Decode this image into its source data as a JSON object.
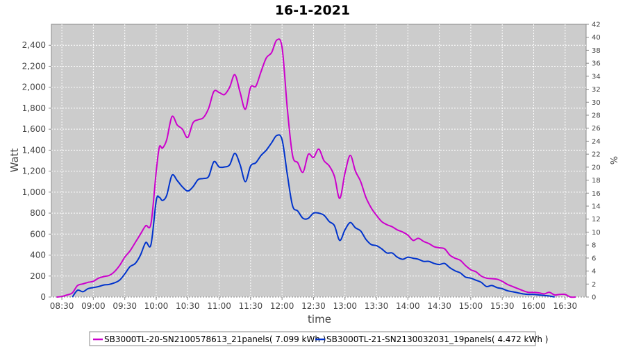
{
  "chart_data": {
    "type": "line",
    "title": "16-1-2021",
    "xlabel": "time",
    "ylabel": "Watt",
    "y2label": "%",
    "xlim": [
      "08:20",
      "16:50"
    ],
    "ylim": [
      0,
      2600
    ],
    "y2lim": [
      0,
      42
    ],
    "grid": true,
    "legend_position": "bottom",
    "x_ticks": [
      "08:30",
      "09:00",
      "09:30",
      "10:00",
      "10:30",
      "11:00",
      "11:30",
      "12:00",
      "12:30",
      "13:00",
      "13:30",
      "14:00",
      "14:30",
      "15:00",
      "15:30",
      "16:00",
      "16:30"
    ],
    "y_ticks": [
      "0",
      "200",
      "400",
      "600",
      "800",
      "1,000",
      "1,200",
      "1,400",
      "1,600",
      "1,800",
      "2,000",
      "2,200",
      "2,400"
    ],
    "y2_ticks": [
      "0",
      "2",
      "4",
      "6",
      "8",
      "10",
      "12",
      "14",
      "16",
      "18",
      "20",
      "22",
      "24",
      "26",
      "28",
      "30",
      "32",
      "34",
      "36",
      "38",
      "40",
      "42"
    ],
    "colors": {
      "plot_bg": "#cccccc",
      "grid": "#ffffff"
    },
    "series": [
      {
        "name": "SB3000TL-20-SN2100578613_21panels( 7.099 kWh )",
        "color": "#cc00cc",
        "points": [
          [
            "08:25",
            0
          ],
          [
            "08:30",
            5
          ],
          [
            "08:35",
            20
          ],
          [
            "08:40",
            40
          ],
          [
            "08:45",
            110
          ],
          [
            "08:50",
            125
          ],
          [
            "08:55",
            140
          ],
          [
            "09:00",
            150
          ],
          [
            "09:05",
            180
          ],
          [
            "09:10",
            195
          ],
          [
            "09:15",
            205
          ],
          [
            "09:20",
            240
          ],
          [
            "09:25",
            300
          ],
          [
            "09:30",
            380
          ],
          [
            "09:35",
            440
          ],
          [
            "09:40",
            520
          ],
          [
            "09:45",
            600
          ],
          [
            "09:50",
            680
          ],
          [
            "09:55",
            700
          ],
          [
            "10:00",
            1200
          ],
          [
            "10:03",
            1430
          ],
          [
            "10:06",
            1420
          ],
          [
            "10:10",
            1500
          ],
          [
            "10:15",
            1720
          ],
          [
            "10:20",
            1640
          ],
          [
            "10:25",
            1600
          ],
          [
            "10:30",
            1520
          ],
          [
            "10:35",
            1660
          ],
          [
            "10:40",
            1690
          ],
          [
            "10:45",
            1710
          ],
          [
            "10:50",
            1800
          ],
          [
            "10:55",
            1960
          ],
          [
            "11:00",
            1950
          ],
          [
            "11:05",
            1930
          ],
          [
            "11:10",
            2000
          ],
          [
            "11:15",
            2120
          ],
          [
            "11:20",
            1950
          ],
          [
            "11:25",
            1790
          ],
          [
            "11:30",
            2000
          ],
          [
            "11:35",
            2010
          ],
          [
            "11:40",
            2150
          ],
          [
            "11:45",
            2280
          ],
          [
            "11:50",
            2330
          ],
          [
            "11:55",
            2450
          ],
          [
            "12:00",
            2380
          ],
          [
            "12:05",
            1800
          ],
          [
            "12:10",
            1350
          ],
          [
            "12:15",
            1280
          ],
          [
            "12:20",
            1190
          ],
          [
            "12:25",
            1360
          ],
          [
            "12:30",
            1330
          ],
          [
            "12:35",
            1410
          ],
          [
            "12:40",
            1300
          ],
          [
            "12:45",
            1250
          ],
          [
            "12:50",
            1150
          ],
          [
            "12:55",
            940
          ],
          [
            "13:00",
            1180
          ],
          [
            "13:05",
            1350
          ],
          [
            "13:10",
            1200
          ],
          [
            "13:15",
            1100
          ],
          [
            "13:20",
            950
          ],
          [
            "13:25",
            850
          ],
          [
            "13:30",
            780
          ],
          [
            "13:35",
            720
          ],
          [
            "13:40",
            690
          ],
          [
            "13:45",
            670
          ],
          [
            "13:50",
            640
          ],
          [
            "13:55",
            620
          ],
          [
            "14:00",
            590
          ],
          [
            "14:05",
            540
          ],
          [
            "14:10",
            560
          ],
          [
            "14:15",
            530
          ],
          [
            "14:20",
            510
          ],
          [
            "14:25",
            480
          ],
          [
            "14:30",
            470
          ],
          [
            "14:35",
            460
          ],
          [
            "14:40",
            400
          ],
          [
            "14:45",
            370
          ],
          [
            "14:50",
            350
          ],
          [
            "14:55",
            300
          ],
          [
            "15:00",
            260
          ],
          [
            "15:05",
            240
          ],
          [
            "15:10",
            200
          ],
          [
            "15:15",
            180
          ],
          [
            "15:20",
            175
          ],
          [
            "15:25",
            170
          ],
          [
            "15:30",
            150
          ],
          [
            "15:35",
            120
          ],
          [
            "15:40",
            100
          ],
          [
            "15:45",
            80
          ],
          [
            "15:50",
            60
          ],
          [
            "15:55",
            45
          ],
          [
            "16:00",
            45
          ],
          [
            "16:05",
            40
          ],
          [
            "16:10",
            30
          ],
          [
            "16:15",
            45
          ],
          [
            "16:20",
            20
          ],
          [
            "16:25",
            25
          ],
          [
            "16:30",
            25
          ],
          [
            "16:35",
            0
          ],
          [
            "16:40",
            0
          ]
        ]
      },
      {
        "name": "SB3000TL-21-SN2130032031_19panels( 4.472 kWh )",
        "color": "#0033cc",
        "points": [
          [
            "08:40",
            0
          ],
          [
            "08:45",
            65
          ],
          [
            "08:50",
            50
          ],
          [
            "08:55",
            80
          ],
          [
            "09:00",
            90
          ],
          [
            "09:05",
            100
          ],
          [
            "09:10",
            115
          ],
          [
            "09:15",
            120
          ],
          [
            "09:20",
            135
          ],
          [
            "09:25",
            160
          ],
          [
            "09:30",
            220
          ],
          [
            "09:35",
            290
          ],
          [
            "09:40",
            320
          ],
          [
            "09:45",
            400
          ],
          [
            "09:50",
            520
          ],
          [
            "09:55",
            500
          ],
          [
            "10:00",
            920
          ],
          [
            "10:03",
            950
          ],
          [
            "10:06",
            920
          ],
          [
            "10:10",
            970
          ],
          [
            "10:15",
            1160
          ],
          [
            "10:20",
            1110
          ],
          [
            "10:25",
            1050
          ],
          [
            "10:30",
            1010
          ],
          [
            "10:35",
            1050
          ],
          [
            "10:40",
            1120
          ],
          [
            "10:45",
            1130
          ],
          [
            "10:50",
            1150
          ],
          [
            "10:55",
            1290
          ],
          [
            "11:00",
            1240
          ],
          [
            "11:05",
            1240
          ],
          [
            "11:10",
            1260
          ],
          [
            "11:15",
            1370
          ],
          [
            "11:20",
            1260
          ],
          [
            "11:25",
            1100
          ],
          [
            "11:30",
            1250
          ],
          [
            "11:35",
            1280
          ],
          [
            "11:40",
            1350
          ],
          [
            "11:45",
            1400
          ],
          [
            "11:50",
            1470
          ],
          [
            "11:55",
            1540
          ],
          [
            "12:00",
            1500
          ],
          [
            "12:05",
            1170
          ],
          [
            "12:10",
            870
          ],
          [
            "12:15",
            820
          ],
          [
            "12:20",
            750
          ],
          [
            "12:25",
            750
          ],
          [
            "12:30",
            800
          ],
          [
            "12:35",
            800
          ],
          [
            "12:40",
            780
          ],
          [
            "12:45",
            720
          ],
          [
            "12:50",
            680
          ],
          [
            "12:55",
            540
          ],
          [
            "13:00",
            640
          ],
          [
            "13:05",
            710
          ],
          [
            "13:10",
            660
          ],
          [
            "13:15",
            630
          ],
          [
            "13:20",
            550
          ],
          [
            "13:25",
            500
          ],
          [
            "13:30",
            490
          ],
          [
            "13:35",
            460
          ],
          [
            "13:40",
            420
          ],
          [
            "13:45",
            420
          ],
          [
            "13:50",
            380
          ],
          [
            "13:55",
            360
          ],
          [
            "14:00",
            380
          ],
          [
            "14:05",
            370
          ],
          [
            "14:10",
            360
          ],
          [
            "14:15",
            340
          ],
          [
            "14:20",
            340
          ],
          [
            "14:25",
            320
          ],
          [
            "14:30",
            310
          ],
          [
            "14:35",
            320
          ],
          [
            "14:40",
            280
          ],
          [
            "14:45",
            250
          ],
          [
            "14:50",
            230
          ],
          [
            "14:55",
            190
          ],
          [
            "15:00",
            180
          ],
          [
            "15:05",
            160
          ],
          [
            "15:10",
            140
          ],
          [
            "15:15",
            100
          ],
          [
            "15:20",
            110
          ],
          [
            "15:25",
            90
          ],
          [
            "15:30",
            80
          ],
          [
            "15:35",
            60
          ],
          [
            "15:40",
            50
          ],
          [
            "15:45",
            40
          ],
          [
            "15:50",
            30
          ],
          [
            "15:55",
            25
          ],
          [
            "16:00",
            25
          ],
          [
            "16:05",
            20
          ],
          [
            "16:10",
            15
          ],
          [
            "16:15",
            10
          ],
          [
            "16:20",
            0
          ]
        ]
      }
    ]
  }
}
